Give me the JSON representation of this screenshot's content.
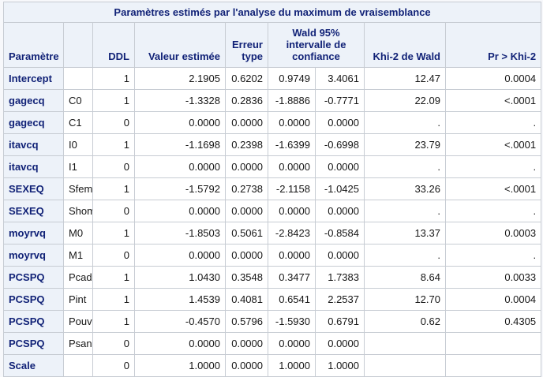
{
  "colors": {
    "header_background": "#edf2f9",
    "header_text": "#112277",
    "border": "#c7ccd3",
    "cell_background": "#ffffff",
    "data_text": "#161616",
    "page_background": "#f7f8fb"
  },
  "chart_data": {
    "type": "table",
    "title": "Paramètres estimés par l'analyse du maximum de vraisemblance",
    "column_headers": [
      "Paramètre",
      "",
      "DDL",
      "Valeur estimée",
      "Erreur type",
      "Wald 95% intervalle de confiance",
      "Khi-2 de Wald",
      "Pr > Khi-2"
    ],
    "notes": "Column 'Wald 95% intervalle de confiance' spans two body columns (lower and upper bounds). First body column is a row-header column.",
    "rows": [
      [
        "Intercept",
        "",
        "1",
        "2.1905",
        "0.6202",
        "0.9749",
        "3.4061",
        "12.47",
        "0.0004"
      ],
      [
        "gagecq",
        "C0",
        "1",
        "-1.3328",
        "0.2836",
        "-1.8886",
        "-0.7771",
        "22.09",
        "<.0001"
      ],
      [
        "gagecq",
        "C1",
        "0",
        "0.0000",
        "0.0000",
        "0.0000",
        "0.0000",
        ".",
        "."
      ],
      [
        "itavcq",
        "I0",
        "1",
        "-1.1698",
        "0.2398",
        "-1.6399",
        "-0.6998",
        "23.79",
        "<.0001"
      ],
      [
        "itavcq",
        "I1",
        "0",
        "0.0000",
        "0.0000",
        "0.0000",
        "0.0000",
        ".",
        "."
      ],
      [
        "SEXEQ",
        "Sfem",
        "1",
        "-1.5792",
        "0.2738",
        "-2.1158",
        "-1.0425",
        "33.26",
        "<.0001"
      ],
      [
        "SEXEQ",
        "Shom",
        "0",
        "0.0000",
        "0.0000",
        "0.0000",
        "0.0000",
        ".",
        "."
      ],
      [
        "moyrvq",
        "M0",
        "1",
        "-1.8503",
        "0.5061",
        "-2.8423",
        "-0.8584",
        "13.37",
        "0.0003"
      ],
      [
        "moyrvq",
        "M1",
        "0",
        "0.0000",
        "0.0000",
        "0.0000",
        "0.0000",
        ".",
        "."
      ],
      [
        "PCSPQ",
        "Pcad",
        "1",
        "1.0430",
        "0.3548",
        "0.3477",
        "1.7383",
        "8.64",
        "0.0033"
      ],
      [
        "PCSPQ",
        "Pint",
        "1",
        "1.4539",
        "0.4081",
        "0.6541",
        "2.2537",
        "12.70",
        "0.0004"
      ],
      [
        "PCSPQ",
        "Pouv",
        "1",
        "-0.4570",
        "0.5796",
        "-1.5930",
        "0.6791",
        "0.62",
        "0.4305"
      ],
      [
        "PCSPQ",
        "Psan",
        "0",
        "0.0000",
        "0.0000",
        "0.0000",
        "0.0000",
        "",
        ""
      ],
      [
        "Scale",
        "",
        "0",
        "1.0000",
        "0.0000",
        "1.0000",
        "1.0000",
        "",
        ""
      ]
    ],
    "missing_value_rows_chisq": [
      2,
      4,
      6,
      8
    ],
    "blank_chisq_rows": [
      13
    ]
  }
}
